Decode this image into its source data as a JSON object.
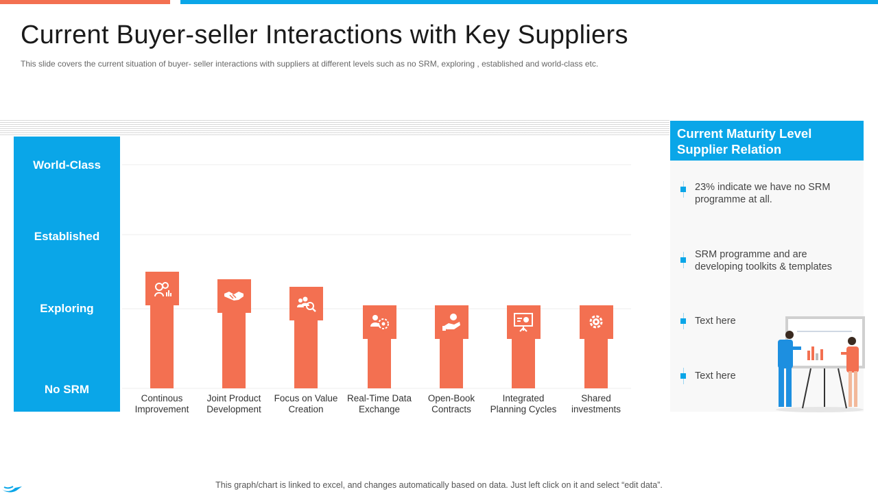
{
  "header": {
    "title": "Current Buyer-seller Interactions with Key Suppliers",
    "subtitle": "This slide covers  the current situation of buyer- seller interactions with suppliers at different levels such as no SRM,  exploring , established and world-class etc."
  },
  "colors": {
    "accent_blue": "#0aa6e8",
    "accent_orange": "#f37051"
  },
  "levels": {
    "world_class": "World-Class",
    "established": "Established",
    "exploring": "Exploring",
    "no_srm": "No SRM"
  },
  "chart_data": {
    "type": "bar",
    "categories": [
      "Continous Improvement",
      "Joint Product Development",
      "Focus on Value Creation",
      "Real-Time Data Exchange",
      "Open-Book Contracts",
      "Integrated Planning Cycles",
      "Shared investments"
    ],
    "category_lines": [
      [
        "Continous",
        "Improvement"
      ],
      [
        "Joint Product",
        "Development"
      ],
      [
        "Focus on Value",
        "Creation"
      ],
      [
        "Real-Time Data",
        "Exchange"
      ],
      [
        "Open-Book",
        "Contracts"
      ],
      [
        "Integrated",
        "Planning Cycles"
      ],
      [
        "Shared",
        "investments"
      ]
    ],
    "y_levels": [
      "No SRM",
      "Exploring",
      "Established",
      "World-Class"
    ],
    "values": [
      1.5,
      1.4,
      1.3,
      1.05,
      1.05,
      1.05,
      1.05
    ],
    "ylim": [
      0,
      3
    ],
    "grid": true,
    "icons": [
      "team-ideas-icon",
      "handshake-icon",
      "people-search-icon",
      "data-exchange-icon",
      "hand-coin-icon",
      "presentation-board-icon",
      "gear-head-icon"
    ]
  },
  "right_panel": {
    "title_line1": "Current Maturity Level",
    "title_line2": "Supplier Relation",
    "items": [
      {
        "text": "23% indicate we have no SRM programme at all."
      },
      {
        "text": "SRM programme and are developing toolkits & templates"
      },
      {
        "text": "Text here"
      },
      {
        "text": "Text here"
      }
    ]
  },
  "footer": {
    "note": "This graph/chart is linked to excel, and changes automatically based on data. Just left click on it and select “edit data”."
  }
}
